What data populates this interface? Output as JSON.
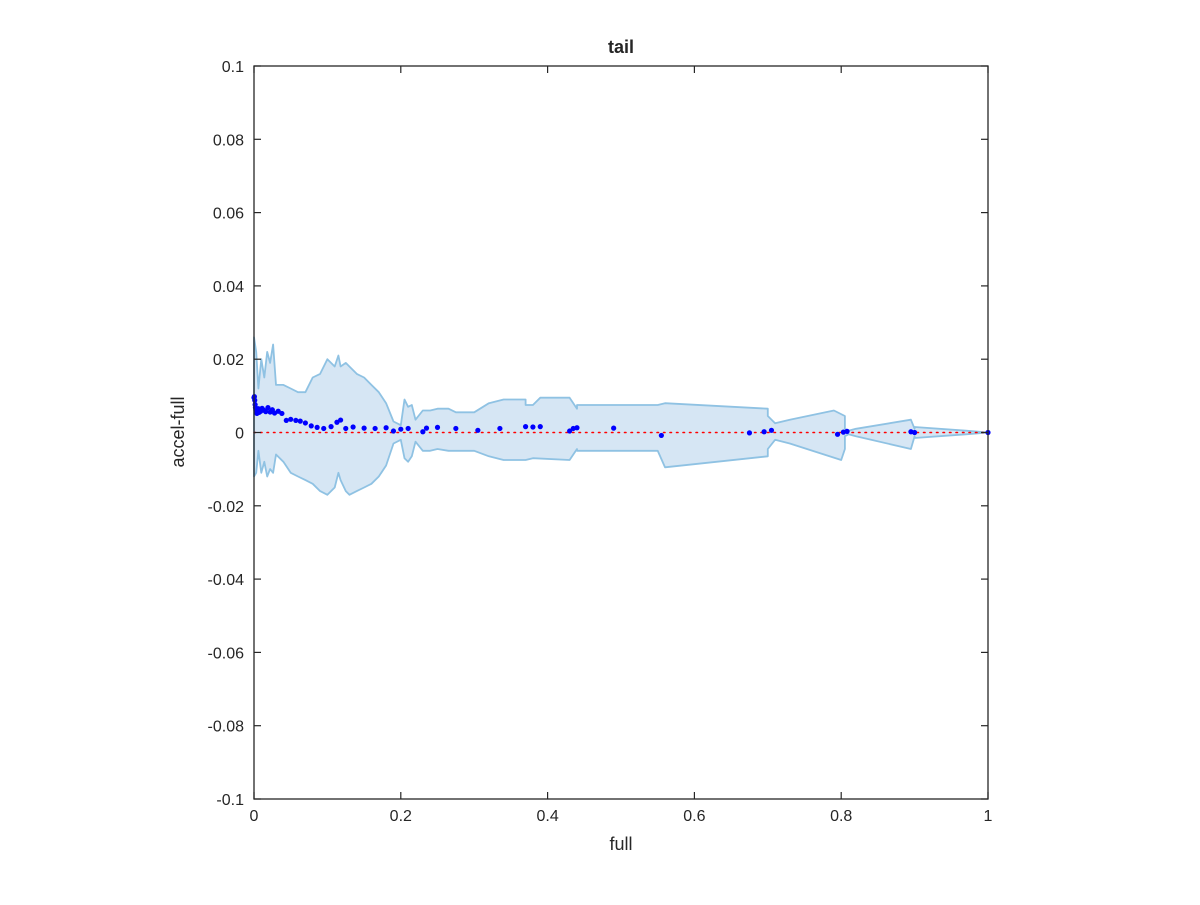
{
  "chart_data": {
    "type": "scatter",
    "title": "tail",
    "xlabel": "full",
    "ylabel": "accel-full",
    "xlim": [
      0,
      1
    ],
    "ylim": [
      -0.1,
      0.1
    ],
    "x_ticks": [
      0,
      0.2,
      0.4,
      0.6,
      0.8,
      1
    ],
    "x_tick_labels": [
      "0",
      "0.2",
      "0.4",
      "0.6",
      "0.8",
      "1"
    ],
    "y_ticks": [
      -0.1,
      -0.08,
      -0.06,
      -0.04,
      -0.02,
      0,
      0.02,
      0.04,
      0.06,
      0.08,
      0.1
    ],
    "y_tick_labels": [
      "-0.1",
      "-0.08",
      "-0.06",
      "-0.04",
      "-0.02",
      "0",
      "0.02",
      "0.04",
      "0.06",
      "0.08",
      "0.1"
    ],
    "grid": false,
    "colors": {
      "band_fill": "#d6e6f4",
      "band_edge": "#8fc2e3",
      "points": "#0000ff",
      "reference": "#ff0000",
      "axes": "#262626"
    },
    "reference_line": {
      "y": 0,
      "style": "dotted"
    },
    "band": {
      "upper": [
        [
          0,
          0.026
        ],
        [
          0.003,
          0.022
        ],
        [
          0.006,
          0.012
        ],
        [
          0.01,
          0.02
        ],
        [
          0.014,
          0.015
        ],
        [
          0.018,
          0.022
        ],
        [
          0.022,
          0.019
        ],
        [
          0.026,
          0.024
        ],
        [
          0.03,
          0.013
        ],
        [
          0.04,
          0.013
        ],
        [
          0.05,
          0.012
        ],
        [
          0.06,
          0.011
        ],
        [
          0.07,
          0.011
        ],
        [
          0.08,
          0.015
        ],
        [
          0.09,
          0.016
        ],
        [
          0.1,
          0.02
        ],
        [
          0.11,
          0.018
        ],
        [
          0.115,
          0.021
        ],
        [
          0.118,
          0.018
        ],
        [
          0.125,
          0.019
        ],
        [
          0.13,
          0.018
        ],
        [
          0.14,
          0.016
        ],
        [
          0.15,
          0.015
        ],
        [
          0.16,
          0.013
        ],
        [
          0.17,
          0.011
        ],
        [
          0.18,
          0.008
        ],
        [
          0.19,
          0.003
        ],
        [
          0.2,
          0.002
        ],
        [
          0.205,
          0.009
        ],
        [
          0.21,
          0.007
        ],
        [
          0.215,
          0.0075
        ],
        [
          0.22,
          0.0035
        ],
        [
          0.23,
          0.006
        ],
        [
          0.24,
          0.006
        ],
        [
          0.25,
          0.0065
        ],
        [
          0.265,
          0.0065
        ],
        [
          0.275,
          0.0055
        ],
        [
          0.3,
          0.0055
        ],
        [
          0.32,
          0.008
        ],
        [
          0.34,
          0.009
        ],
        [
          0.37,
          0.009
        ],
        [
          0.37,
          0.0075
        ],
        [
          0.38,
          0.0075
        ],
        [
          0.39,
          0.0095
        ],
        [
          0.43,
          0.0095
        ],
        [
          0.44,
          0.0065
        ],
        [
          0.44,
          0.0075
        ],
        [
          0.55,
          0.0075
        ],
        [
          0.56,
          0.008
        ],
        [
          0.7,
          0.0065
        ],
        [
          0.7,
          0.0045
        ],
        [
          0.71,
          0.0025
        ],
        [
          0.73,
          0.0035
        ],
        [
          0.79,
          0.006
        ],
        [
          0.805,
          0.0045
        ],
        [
          0.805,
          0.001
        ],
        [
          0.81,
          0.0005
        ],
        [
          0.82,
          0.001
        ],
        [
          0.895,
          0.0035
        ],
        [
          0.9,
          0.001
        ],
        [
          0.9,
          0.0015
        ],
        [
          0.97,
          0.0005
        ],
        [
          1,
          0.0
        ]
      ],
      "lower": [
        [
          0,
          -0.012
        ],
        [
          0.003,
          -0.011
        ],
        [
          0.006,
          -0.005
        ],
        [
          0.01,
          -0.011
        ],
        [
          0.014,
          -0.008
        ],
        [
          0.018,
          -0.012
        ],
        [
          0.022,
          -0.01
        ],
        [
          0.026,
          -0.011
        ],
        [
          0.03,
          -0.006
        ],
        [
          0.04,
          -0.008
        ],
        [
          0.05,
          -0.011
        ],
        [
          0.06,
          -0.012
        ],
        [
          0.07,
          -0.013
        ],
        [
          0.08,
          -0.014
        ],
        [
          0.09,
          -0.016
        ],
        [
          0.1,
          -0.017
        ],
        [
          0.11,
          -0.015
        ],
        [
          0.115,
          -0.011
        ],
        [
          0.118,
          -0.013
        ],
        [
          0.125,
          -0.016
        ],
        [
          0.13,
          -0.017
        ],
        [
          0.14,
          -0.016
        ],
        [
          0.15,
          -0.015
        ],
        [
          0.16,
          -0.014
        ],
        [
          0.17,
          -0.012
        ],
        [
          0.18,
          -0.009
        ],
        [
          0.19,
          -0.003
        ],
        [
          0.2,
          -0.002
        ],
        [
          0.205,
          -0.007
        ],
        [
          0.21,
          -0.008
        ],
        [
          0.215,
          -0.0065
        ],
        [
          0.22,
          -0.0025
        ],
        [
          0.23,
          -0.005
        ],
        [
          0.24,
          -0.005
        ],
        [
          0.25,
          -0.0045
        ],
        [
          0.265,
          -0.005
        ],
        [
          0.3,
          -0.005
        ],
        [
          0.32,
          -0.0065
        ],
        [
          0.34,
          -0.0075
        ],
        [
          0.37,
          -0.0075
        ],
        [
          0.38,
          -0.007
        ],
        [
          0.43,
          -0.0075
        ],
        [
          0.44,
          -0.0045
        ],
        [
          0.44,
          -0.005
        ],
        [
          0.55,
          -0.005
        ],
        [
          0.56,
          -0.0095
        ],
        [
          0.7,
          -0.0065
        ],
        [
          0.7,
          -0.0045
        ],
        [
          0.71,
          -0.002
        ],
        [
          0.73,
          -0.003
        ],
        [
          0.8,
          -0.0075
        ],
        [
          0.805,
          -0.0045
        ],
        [
          0.805,
          -0.001
        ],
        [
          0.81,
          -0.0005
        ],
        [
          0.82,
          -0.001
        ],
        [
          0.895,
          -0.0045
        ],
        [
          0.9,
          -0.001
        ],
        [
          0.9,
          -0.0015
        ],
        [
          0.97,
          -0.0005
        ],
        [
          1,
          0.0
        ]
      ]
    },
    "points": [
      [
        0,
        0.0095
      ],
      [
        0.0005,
        0.0098
      ],
      [
        0.001,
        0.0088
      ],
      [
        0.0015,
        0.0076
      ],
      [
        0.002,
        0.0068
      ],
      [
        0.0025,
        0.0062
      ],
      [
        0.003,
        0.0057
      ],
      [
        0.004,
        0.0052
      ],
      [
        0.005,
        0.0059
      ],
      [
        0.006,
        0.0065
      ],
      [
        0.007,
        0.0055
      ],
      [
        0.008,
        0.0062
      ],
      [
        0.009,
        0.0058
      ],
      [
        0.011,
        0.0066
      ],
      [
        0.013,
        0.0061
      ],
      [
        0.016,
        0.0057
      ],
      [
        0.019,
        0.0068
      ],
      [
        0.022,
        0.0056
      ],
      [
        0.025,
        0.0062
      ],
      [
        0.028,
        0.0053
      ],
      [
        0.033,
        0.0058
      ],
      [
        0.038,
        0.0052
      ],
      [
        0.044,
        0.0033
      ],
      [
        0.05,
        0.0036
      ],
      [
        0.057,
        0.0033
      ],
      [
        0.063,
        0.0031
      ],
      [
        0.07,
        0.0026
      ],
      [
        0.078,
        0.0018
      ],
      [
        0.086,
        0.0014
      ],
      [
        0.095,
        0.0011
      ],
      [
        0.105,
        0.0016
      ],
      [
        0.113,
        0.0028
      ],
      [
        0.118,
        0.0034
      ],
      [
        0.125,
        0.0011
      ],
      [
        0.135,
        0.0015
      ],
      [
        0.15,
        0.0012
      ],
      [
        0.165,
        0.0011
      ],
      [
        0.18,
        0.0013
      ],
      [
        0.19,
        0.0004
      ],
      [
        0.2,
        0.0009
      ],
      [
        0.21,
        0.0011
      ],
      [
        0.23,
        0.0002
      ],
      [
        0.235,
        0.0012
      ],
      [
        0.25,
        0.0014
      ],
      [
        0.275,
        0.0011
      ],
      [
        0.305,
        0.0006
      ],
      [
        0.335,
        0.0011
      ],
      [
        0.37,
        0.0016
      ],
      [
        0.38,
        0.0015
      ],
      [
        0.39,
        0.0016
      ],
      [
        0.43,
        0.0004
      ],
      [
        0.435,
        0.0011
      ],
      [
        0.44,
        0.0013
      ],
      [
        0.49,
        0.0012
      ],
      [
        0.555,
        -0.0008
      ],
      [
        0.675,
        -0.0001
      ],
      [
        0.695,
        0.0002
      ],
      [
        0.705,
        0.0006
      ],
      [
        0.795,
        -0.0005
      ],
      [
        0.803,
        0.0001
      ],
      [
        0.808,
        0.0003
      ],
      [
        0.895,
        0.0002
      ],
      [
        0.9,
        0.0
      ],
      [
        1,
        0.0
      ]
    ]
  }
}
